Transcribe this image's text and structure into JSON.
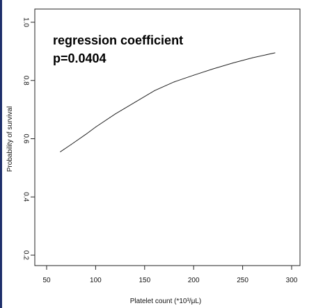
{
  "chart_data": {
    "type": "line",
    "title": "",
    "xlabel": "Platelet count (*10³/μL)",
    "ylabel": "Probability of survival",
    "xlim": [
      50,
      300
    ],
    "ylim": [
      0.2,
      1.0
    ],
    "x_ticks": [
      50,
      100,
      150,
      200,
      250,
      300
    ],
    "y_ticks": [
      0.2,
      0.4,
      0.6,
      0.8,
      1.0
    ],
    "x_tick_labels": [
      "50",
      "100",
      "150",
      "200",
      "250",
      "300"
    ],
    "y_tick_labels": [
      "0.2",
      "0.4",
      "0.6",
      "0.8",
      "1.0"
    ],
    "grid": false,
    "annotation": {
      "line1": "regression coefficient",
      "line2": "p=0.0404"
    },
    "series": [
      {
        "x": [
          64,
          75,
          90,
          100,
          120,
          140,
          160,
          180,
          200,
          220,
          240,
          260,
          283
        ],
        "y": [
          0.555,
          0.58,
          0.615,
          0.64,
          0.685,
          0.725,
          0.765,
          0.795,
          0.818,
          0.84,
          0.86,
          0.878,
          0.895
        ]
      }
    ],
    "colors": {
      "line": "#222222",
      "axis": "#222222"
    }
  }
}
